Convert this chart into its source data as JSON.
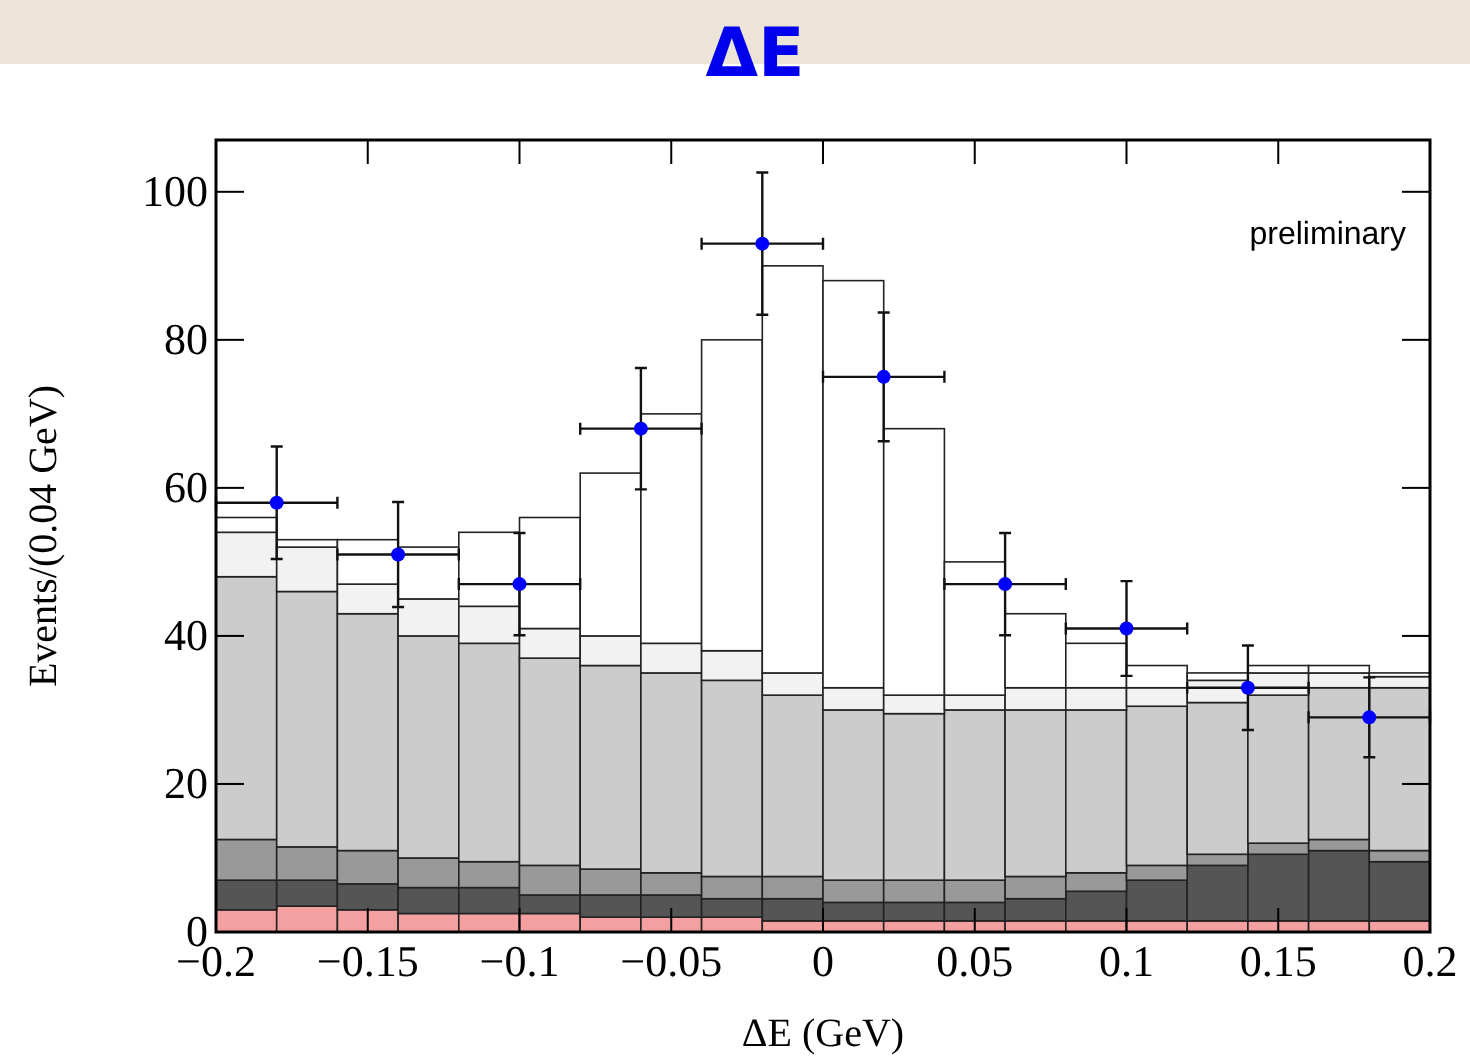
{
  "chart_data": {
    "type": "bar",
    "title": "ΔE",
    "xlabel": "ΔE (GeV)",
    "ylabel": "Events/(0.04 GeV)",
    "stacked": true,
    "x": [
      -0.19,
      -0.17,
      -0.15,
      -0.13,
      -0.11,
      -0.09,
      -0.07,
      -0.05,
      -0.03,
      -0.01,
      0.01,
      0.03,
      0.05,
      0.07,
      0.09,
      0.11,
      0.13,
      0.15,
      0.17,
      0.19
    ],
    "series": [
      {
        "color": "#f4a0a0",
        "values": [
          3,
          3.5,
          3,
          2.5,
          2.5,
          2.5,
          2,
          2,
          2,
          1.5,
          1.5,
          1.5,
          1.5,
          1.5,
          1.5,
          1.5,
          1.5,
          1.5,
          1.5,
          1.5
        ]
      },
      {
        "color": "#555555",
        "values": [
          4,
          3.5,
          3.5,
          3.5,
          3.5,
          2.5,
          3,
          3,
          2.5,
          3,
          2.5,
          2.5,
          2.5,
          3,
          4,
          5.5,
          7.5,
          9,
          9.5,
          8
        ]
      },
      {
        "color": "#999999",
        "values": [
          5.5,
          4.5,
          4.5,
          4,
          3.5,
          4,
          3.5,
          3,
          3,
          3,
          3,
          3,
          3,
          3,
          2.5,
          2,
          1.5,
          1.5,
          1.5,
          1.5
        ]
      },
      {
        "color": "#cccccc",
        "values": [
          35.5,
          34.5,
          32,
          30,
          29.5,
          28,
          27.5,
          27,
          26.5,
          24.5,
          23,
          22.5,
          23,
          22.5,
          22,
          21.5,
          20.5,
          20,
          20.5,
          22
        ]
      },
      {
        "color": "#f2f2f2",
        "values": [
          6,
          6,
          4,
          5,
          5,
          4,
          4,
          4,
          4,
          3,
          3,
          2.5,
          2,
          3,
          3,
          2.5,
          3,
          3,
          2,
          1.5
        ]
      },
      {
        "color": "#ffffff",
        "values": [
          2,
          1,
          6,
          7,
          10,
          15,
          22,
          31,
          42,
          55,
          55,
          36,
          18,
          10,
          6,
          3,
          1,
          1,
          1,
          0.5
        ]
      },
      {
        "type": "scatter",
        "color": "#0000ff",
        "marker": "circle",
        "x": [
          -0.18,
          -0.14,
          -0.1,
          -0.06,
          -0.02,
          0.02,
          0.06,
          0.1,
          0.14,
          0.18
        ],
        "values": [
          58,
          51,
          47,
          68,
          93,
          75,
          47,
          41,
          33,
          29
        ],
        "errors": [
          7.6,
          7.1,
          6.9,
          8.2,
          9.6,
          8.7,
          6.9,
          6.4,
          5.7,
          5.4
        ],
        "xerrors": [
          0.02,
          0.02,
          0.02,
          0.02,
          0.02,
          0.02,
          0.02,
          0.02,
          0.02,
          0.02
        ]
      }
    ],
    "xlim": [
      -0.2,
      0.2
    ],
    "xticks": [
      {
        "value": -0.2,
        "label": "−0.2"
      },
      {
        "value": -0.15,
        "label": "−0.15"
      },
      {
        "value": -0.1,
        "label": "−0.1"
      },
      {
        "value": -0.05,
        "label": "−0.05"
      },
      0,
      0.05,
      0.1,
      0.15,
      0.2
    ],
    "ylim": [
      0,
      107
    ],
    "yticks": [
      0,
      20,
      40,
      60,
      80,
      100
    ],
    "annotations": [
      "preliminary"
    ]
  }
}
